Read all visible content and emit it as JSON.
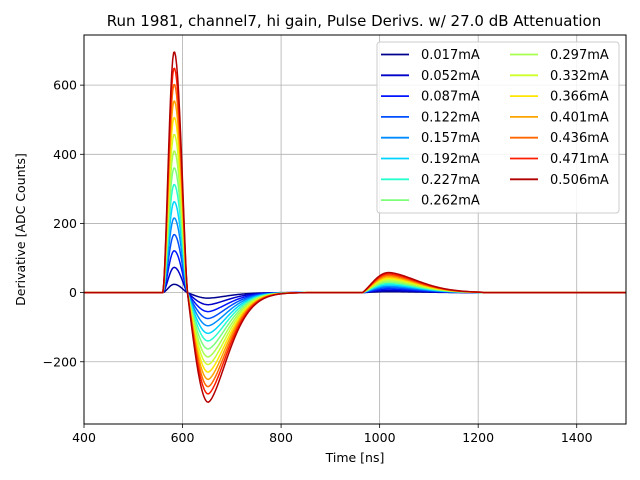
{
  "chart_data": {
    "type": "line",
    "title": "Run 1981, channel7, hi gain, Pulse Derivs. w/ 27.0 dB Attenuation",
    "xlabel": "Time [ns]",
    "ylabel": "Derivative [ADC Counts]",
    "xlim": [
      400,
      1500
    ],
    "ylim": [
      -380,
      745
    ],
    "x_ticks": [
      400,
      600,
      800,
      1000,
      1200,
      1400
    ],
    "y_ticks": [
      -200,
      0,
      200,
      400,
      600
    ],
    "x_tick_labels": [
      "400",
      "600",
      "800",
      "1000",
      "1200",
      "1400"
    ],
    "y_tick_labels": [
      "−200",
      "0",
      "200",
      "400",
      "600"
    ],
    "grid": true,
    "legend_position": "top-right",
    "legend_columns": 2,
    "series": [
      {
        "name": "0.017mA",
        "color": "#00008f",
        "peak": 24,
        "trough": -16,
        "bump": 3
      },
      {
        "name": "0.052mA",
        "color": "#0000c8",
        "peak": 73,
        "trough": -35,
        "bump": 6
      },
      {
        "name": "0.087mA",
        "color": "#0016ff",
        "peak": 121,
        "trough": -55,
        "bump": 10
      },
      {
        "name": "0.122mA",
        "color": "#0050ff",
        "peak": 168,
        "trough": -75,
        "bump": 14
      },
      {
        "name": "0.157mA",
        "color": "#008cff",
        "peak": 216,
        "trough": -96,
        "bump": 18
      },
      {
        "name": "0.192mA",
        "color": "#00d4ff",
        "peak": 263,
        "trough": -118,
        "bump": 22
      },
      {
        "name": "0.227mA",
        "color": "#29ffce",
        "peak": 313,
        "trough": -140,
        "bump": 26
      },
      {
        "name": "0.262mA",
        "color": "#7dff7a",
        "peak": 361,
        "trough": -163,
        "bump": 30
      },
      {
        "name": "0.297mA",
        "color": "#a8ff4e",
        "peak": 410,
        "trough": -186,
        "bump": 34
      },
      {
        "name": "0.332mA",
        "color": "#ceff29",
        "peak": 458,
        "trough": -208,
        "bump": 38
      },
      {
        "name": "0.366mA",
        "color": "#ffe600",
        "peak": 507,
        "trough": -230,
        "bump": 42
      },
      {
        "name": "0.401mA",
        "color": "#ffa300",
        "peak": 555,
        "trough": -251,
        "bump": 46
      },
      {
        "name": "0.436mA",
        "color": "#ff6800",
        "peak": 603,
        "trough": -272,
        "bump": 50
      },
      {
        "name": "0.471mA",
        "color": "#ff1d00",
        "peak": 650,
        "trough": -293,
        "bump": 54
      },
      {
        "name": "0.506mA",
        "color": "#b20000",
        "peak": 697,
        "trough": -317,
        "bump": 58
      }
    ]
  }
}
